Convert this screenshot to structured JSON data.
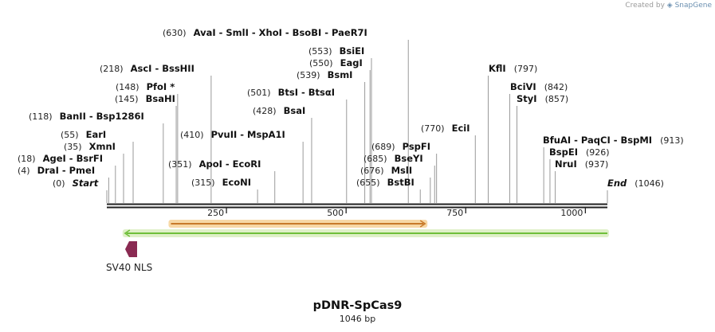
{
  "credit": {
    "prefix": "Created by",
    "brand": "SnapGene"
  },
  "title": "pDNR-SpCas9",
  "subtitle": "1046 bp",
  "sequence_length": 1046,
  "colors": {
    "backbone": "#222222",
    "orange_feature": "#c87a2a",
    "orange_fill": "#f7d8a6",
    "green_feature": "#6fbf3a",
    "green_fill": "#dff0c8",
    "nls": "#8a2a52"
  },
  "ticks": [
    {
      "value": 250,
      "label": "250"
    },
    {
      "value": 500,
      "label": "500"
    },
    {
      "value": 750,
      "label": "750"
    },
    {
      "value": 1000,
      "label": "1000"
    }
  ],
  "sites": [
    {
      "pos": 0,
      "pos_label": "(0)",
      "names": [
        "Start"
      ],
      "marker": true
    },
    {
      "pos": 4,
      "pos_label": "(4)",
      "names": [
        "DraI",
        "PmeI"
      ]
    },
    {
      "pos": 18,
      "pos_label": "(18)",
      "names": [
        "AgeI",
        "BsrFI"
      ]
    },
    {
      "pos": 35,
      "pos_label": "(35)",
      "names": [
        "XmnI"
      ]
    },
    {
      "pos": 55,
      "pos_label": "(55)",
      "names": [
        "EarI"
      ]
    },
    {
      "pos": 118,
      "pos_label": "(118)",
      "names": [
        "BanII",
        "Bsp1286I"
      ]
    },
    {
      "pos": 145,
      "pos_label": "(145)",
      "names": [
        "BsaHI"
      ]
    },
    {
      "pos": 148,
      "pos_label": "(148)",
      "names": [
        "PfoI *"
      ]
    },
    {
      "pos": 218,
      "pos_label": "(218)",
      "names": [
        "AscI",
        "BssHII"
      ]
    },
    {
      "pos": 315,
      "pos_label": "(315)",
      "names": [
        "EcoNI"
      ]
    },
    {
      "pos": 351,
      "pos_label": "(351)",
      "names": [
        "ApoI",
        "EcoRI"
      ]
    },
    {
      "pos": 410,
      "pos_label": "(410)",
      "names": [
        "PvuII",
        "MspA1I"
      ]
    },
    {
      "pos": 428,
      "pos_label": "(428)",
      "names": [
        "BsaI"
      ]
    },
    {
      "pos": 501,
      "pos_label": "(501)",
      "names": [
        "BtsI",
        "BtsαI"
      ]
    },
    {
      "pos": 539,
      "pos_label": "(539)",
      "names": [
        "BsmI"
      ]
    },
    {
      "pos": 550,
      "pos_label": "(550)",
      "names": [
        "EagI"
      ]
    },
    {
      "pos": 553,
      "pos_label": "(553)",
      "names": [
        "BsiEI"
      ]
    },
    {
      "pos": 630,
      "pos_label": "(630)",
      "names": [
        "AvaI",
        "SmlI",
        "XhoI",
        "BsoBI",
        "PaeR7I"
      ]
    },
    {
      "pos": 655,
      "pos_label": "(655)",
      "names": [
        "BstBI"
      ]
    },
    {
      "pos": 676,
      "pos_label": "(676)",
      "names": [
        "MslI"
      ]
    },
    {
      "pos": 685,
      "pos_label": "(685)",
      "names": [
        "BseYI"
      ]
    },
    {
      "pos": 689,
      "pos_label": "(689)",
      "names": [
        "PspFI"
      ]
    },
    {
      "pos": 770,
      "pos_label": "(770)",
      "names": [
        "EciI"
      ]
    },
    {
      "pos": 797,
      "pos_label": "(797)",
      "names": [
        "KflI"
      ]
    },
    {
      "pos": 842,
      "pos_label": "(842)",
      "names": [
        "BciVI"
      ]
    },
    {
      "pos": 857,
      "pos_label": "(857)",
      "names": [
        "StyI"
      ]
    },
    {
      "pos": 913,
      "pos_label": "(913)",
      "names": [
        "BfuAI",
        "PaqCI",
        "BspMI"
      ]
    },
    {
      "pos": 926,
      "pos_label": "(926)",
      "names": [
        "BspEI"
      ]
    },
    {
      "pos": 937,
      "pos_label": "(937)",
      "names": [
        "NruI"
      ]
    },
    {
      "pos": 1046,
      "pos_label": "(1046)",
      "names": [
        "End"
      ],
      "marker": true
    }
  ],
  "features": [
    {
      "name": "orange-feature",
      "start": 134,
      "end": 665,
      "direction": "forward",
      "label": ""
    },
    {
      "name": "green-feature",
      "start": 38,
      "end": 1046,
      "direction": "reverse",
      "label": ""
    },
    {
      "name": "sv40-nls",
      "start": 37,
      "end": 57,
      "direction": "reverse",
      "label": "SV40 NLS"
    }
  ]
}
